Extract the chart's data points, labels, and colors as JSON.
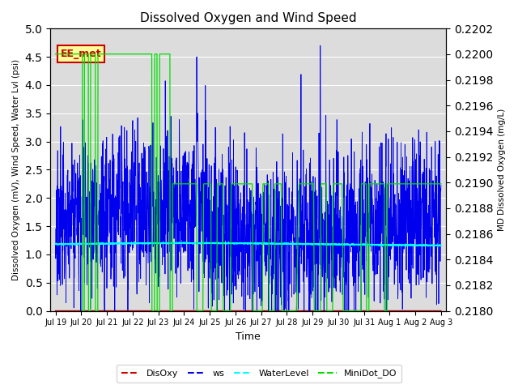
{
  "title": "Dissolved Oxygen and Wind Speed",
  "xlabel": "Time",
  "ylabel_left": "Dissolved Oxygen (mV), Wind Speed, Water Lvl (psi)",
  "ylabel_right": "MD Dissolved Oxygen (mg/L)",
  "ylim_left": [
    0.0,
    5.0
  ],
  "ylim_right": [
    0.218,
    0.2202
  ],
  "yticks_left": [
    0.0,
    0.5,
    1.0,
    1.5,
    2.0,
    2.5,
    3.0,
    3.5,
    4.0,
    4.5,
    5.0
  ],
  "yticks_right": [
    0.218,
    0.2182,
    0.2184,
    0.2186,
    0.2188,
    0.219,
    0.2192,
    0.2194,
    0.2196,
    0.2198,
    0.22,
    0.2202
  ],
  "annotation_text": "EE_met",
  "background_color": "#dcdcdc",
  "xtick_labels": [
    "Jul 19",
    "Jul 20",
    "Jul 21",
    "Jul 22",
    "Jul 23",
    "Jul 24",
    "Jul 25",
    "Jul 26",
    "Jul 27",
    "Jul 28",
    "Jul 29",
    "Jul 30",
    "Jul 31",
    "Aug 1",
    "Aug 2",
    "Aug 3"
  ],
  "xtick_positions": [
    0,
    1,
    2,
    3,
    4,
    5,
    6,
    7,
    8,
    9,
    10,
    11,
    12,
    13,
    14,
    15
  ]
}
